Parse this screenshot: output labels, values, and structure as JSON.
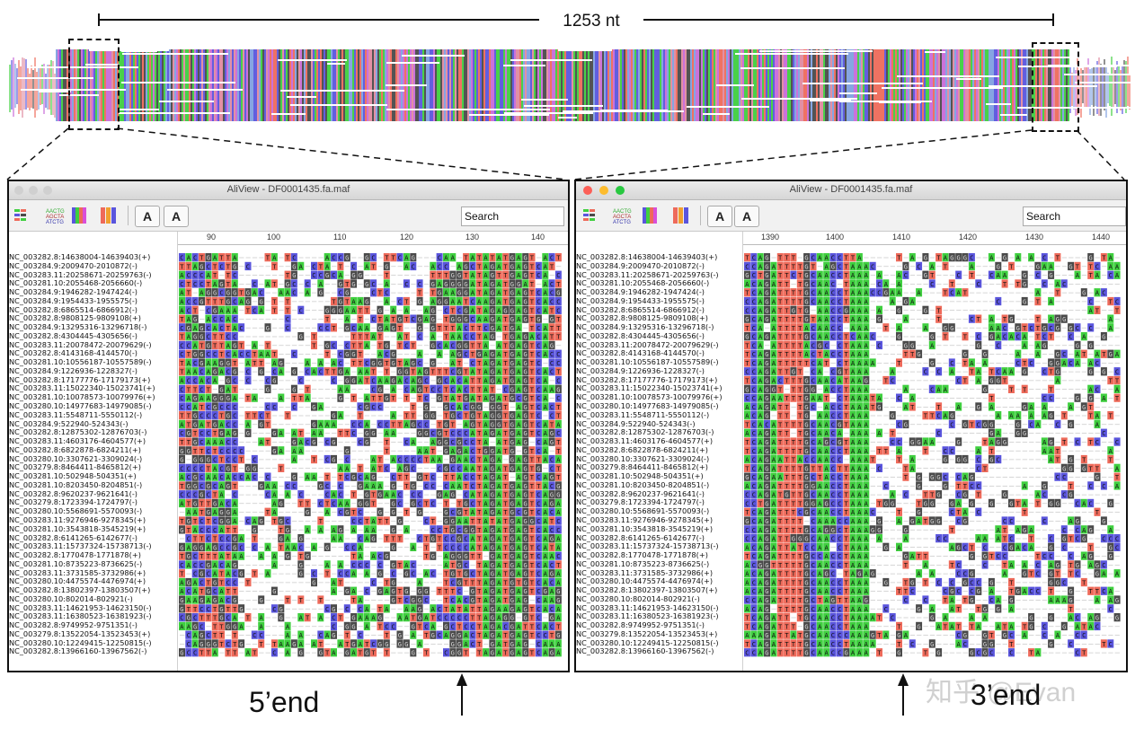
{
  "scale": {
    "label": "1253 nt"
  },
  "colors": {
    "A": "#3fcf3f",
    "T": "#ee6a5a",
    "G": "#4a4a4a",
    "C": "#5a55dd",
    "gap": "#ffffff"
  },
  "windows": [
    {
      "title": "AliView - DF0001435.fa.maf",
      "search_label": "Search",
      "ruler_ticks": [
        "90",
        "100",
        "110",
        "120",
        "130",
        "140"
      ],
      "toolbar_icons": [
        "nucleotide-icon",
        "translate-icon",
        "color-barcode-icon",
        "color-blocks-icon",
        "font-increase-icon",
        "font-decrease-icon"
      ]
    },
    {
      "title": "AliView - DF0001435.fa.maf",
      "search_label": "Search",
      "ruler_ticks": [
        "1390",
        "1400",
        "1410",
        "1420",
        "1430",
        "1440"
      ],
      "toolbar_icons": [
        "nucleotide-icon",
        "translate-icon",
        "color-barcode-icon",
        "color-blocks-icon",
        "font-increase-icon",
        "font-decrease-icon"
      ]
    }
  ],
  "left_sequences": [
    "NC_003282.8:14638004-14639403(+)",
    "NC_003284.9:2009470-2010872(-)",
    "NC_003283.11:20258671-20259763(-)",
    "NC_003281.10:2055468-2056660(-)",
    "NC_003284.9:1946282-1947424(-)",
    "NC_003284.9:1954433-1955575(-)",
    "NC_003282.8:6865514-6866912(-)",
    "NC_003282.8:9808125-9809108(+)",
    "NC_003284.9:13295316-13296718(-)",
    "NC_003282.8:4304445-4305656(-)",
    "NC_003283.11:20078472-20079629(-)",
    "NC_003282.8:4143168-4144570(-)",
    "NC_003281.10:10556187-10557589(-)",
    "NC_003284.9:1226936-1228327(-)",
    "NC_003282.8:17177776-17179173(+)",
    "NC_003283.11:15022340-15023741(+)",
    "NC_003281.10:10078573-10079976(+)",
    "NC_003280.10:14977683-14979085(-)",
    "NC_003283.11:5548711-5550112(-)",
    "NC_003284.9:522940-524343(-)",
    "NC_003282.8:12875302-12876703(-)",
    "NC_003283.11:4603176-4604577(+)",
    "NC_003282.8:6822878-6824211(+)",
    "NC_003280.10:3307621-3309024(-)",
    "NC_003279.8:8464411-8465812(+)",
    "NC_003281.10:502948-504351(+)",
    "NC_003281.10:8203450-8204851(-)",
    "NC_003282.8:9620237-9621641(-)",
    "NC_003279.8:1723394-1724797(-)",
    "NC_003280.10:5568691-5570093(-)",
    "NC_003283.11:9276946-9278345(+)",
    "NC_003281.10:3543818-3545219(+)",
    "NC_003282.8:6141265-6142677(-)",
    "NC_003283.11:15737324-15738713(-)",
    "NC_003282.8:1770478-1771878(+)",
    "NC_003281.10:8735223-8736625(-)",
    "NC_003283.11:3731585-3732986(+)",
    "NC_003280.10:4475574-4476974(+)",
    "NC_003282.8:13802397-13803507(+)",
    "NC_003280.10:802014-802921(-)",
    "NC_003283.11:14621953-14623150(-)",
    "NC_003283.11:16380523-16381923(-)",
    "NC_003282.8:9749952-9751351(-)",
    "NC_003279.8:13522054-13523453(+)",
    "NC_003280.10:12249415-12250815(-)",
    "NC_003282.8:13966160-13967562(-)"
  ],
  "right_sequences": [
    "NC_003282.8:14638004-14639403(+)",
    "NC_003284.9:2009470-2010872(-)",
    "NC_003283.11:20258671-20259763(-)",
    "NC_003281.10:2055468-2056660(-)",
    "NC_003284.9:1946282-1947424(-)",
    "NC_003284.9:1954433-1955575(-)",
    "NC_003282.8:6865514-6866912(-)",
    "NC_003282.8:9808125-9809108(+)",
    "NC_003284.9:13295316-13296718(-)",
    "NC_003282.8:4304445-4305656(-)",
    "NC_003283.11:20078472-20079629(-)",
    "NC_003282.8:4143168-4144570(-)",
    "NC_003281.10:10556187-10557589(-)",
    "NC_003284.9:1226936-1228327(-)",
    "NC_003282.8:17177776-17179173(+)",
    "NC_003283.11:15022340-15023741(+)",
    "NC_003281.10:10078573-10079976(+)",
    "NC_003280.10:14977683-14979085(-)",
    "NC_003283.11:5548711-5550112(-)",
    "NC_003284.9:522940-524343(-)",
    "NC_003282.8:12875302-12876703(-)",
    "NC_003283.11:4603176-4604577(+)",
    "NC_003282.8:6822878-6824211(+)",
    "NC_003280.10:3307621-3309024(-)",
    "NC_003279.8:8464411-8465812(+)",
    "NC_003281.10:502948-504351(+)",
    "NC_003281.10:8203450-8204851(-)",
    "NC_003282.8:9620237-9621641(-)",
    "NC_003279.8:1723394-1724797(-)",
    "NC_003280.10:5568691-5570093(-)",
    "NC_003283.11:9276946-9278345(+)",
    "NC_003281.10:3543818-3545219(+)",
    "NC_003282.8:6141265-6142677(-)",
    "NC_003283.11:15737324-15738713(-)",
    "NC_003282.8:1770478-1771878(+)",
    "NC_003281.10:8735223-8736625(-)",
    "NC_003283.11:3731585-3732986(+)",
    "NC_003280.10:4475574-4476974(+)",
    "NC_003282.8:13802397-13803507(+)",
    "NC_003280.10:802014-802921(-)",
    "NC_003283.11:14621953-14623150(-)",
    "NC_003283.11:16380523-16381923(-)",
    "NC_003282.8:9749952-9751351(-)",
    "NC_003279.8:13522054-13523453(+)",
    "NC_003280.10:12249415-12250815(-)",
    "NC_003282.8:13966160-13967562(-)"
  ],
  "labels": {
    "five_end": "5’end",
    "three_end": "3’end"
  },
  "watermark": "知乎 @Evan"
}
